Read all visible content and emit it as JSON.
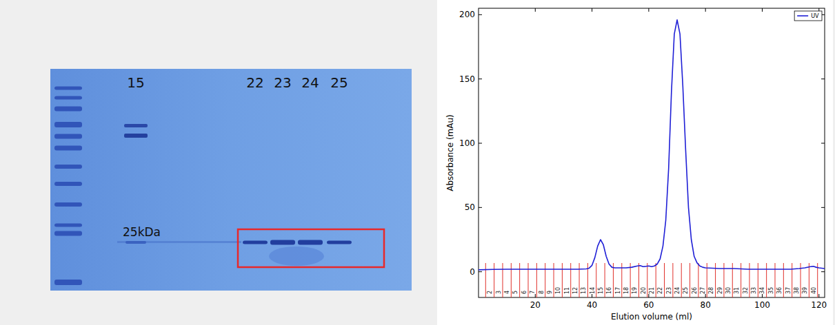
{
  "gel": {
    "lane_labels": [
      "15",
      "22",
      "23",
      "24",
      "25"
    ],
    "marker_label": "25kDa"
  },
  "chart_data": {
    "type": "line",
    "xlabel": "Elution volume (ml)",
    "ylabel": "Absorbance (mAu)",
    "x": [
      0,
      5,
      10,
      15,
      20,
      25,
      30,
      35,
      38,
      39,
      40,
      41,
      42,
      43,
      44,
      45,
      46,
      47,
      48,
      50,
      52,
      54,
      56,
      57,
      58,
      59,
      60,
      61,
      62,
      63,
      64,
      65,
      66,
      67,
      68,
      69,
      70,
      71,
      72,
      73,
      74,
      75,
      76,
      77,
      78,
      79,
      80,
      85,
      90,
      95,
      100,
      105,
      110,
      113,
      115,
      117,
      118,
      119,
      120,
      122
    ],
    "series": [
      {
        "name": "UV",
        "color": "#1f1fd6",
        "values": [
          1.5,
          1.8,
          2,
          2,
          2,
          2,
          2,
          2,
          2.2,
          2.8,
          5,
          11,
          20,
          25,
          21,
          12,
          6,
          3.5,
          3,
          3,
          3,
          3.5,
          4.5,
          4.8,
          4,
          4.2,
          4.5,
          4,
          4.5,
          6,
          10,
          20,
          40,
          80,
          140,
          185,
          196,
          185,
          145,
          95,
          50,
          25,
          12,
          7,
          4.5,
          3.5,
          3,
          2.5,
          2.5,
          2,
          2,
          2,
          2,
          2.5,
          3,
          4,
          4.2,
          3.5,
          3,
          2.5
        ]
      }
    ],
    "xlim": [
      0,
      122
    ],
    "ylim": [
      -20,
      205
    ],
    "xticks": [
      20,
      40,
      60,
      80,
      100,
      120
    ],
    "yticks": [
      0,
      50,
      100,
      150,
      200
    ],
    "grid": false,
    "legend": "upper right",
    "fractions": {
      "color": "#e0302a",
      "labels": [
        2,
        3,
        4,
        5,
        6,
        7,
        8,
        9,
        10,
        11,
        12,
        13,
        14,
        15,
        16,
        17,
        18,
        19,
        20,
        21,
        22,
        23,
        24,
        25,
        26,
        27,
        28,
        29,
        30,
        31,
        32,
        33,
        34,
        35,
        36,
        37,
        38,
        39,
        40
      ],
      "edges": [
        2.5,
        5.5,
        8.5,
        11.5,
        14.5,
        17.5,
        20.5,
        23.5,
        26.5,
        29.5,
        32.5,
        35.5,
        38.5,
        41.5,
        44.5,
        47.5,
        50.5,
        53.5,
        56.5,
        59.5,
        62.5,
        65.5,
        68.5,
        71.5,
        74.5,
        77.5,
        80.5,
        83.5,
        86.5,
        89.5,
        92.5,
        95.5,
        98.5,
        101.5,
        104.5,
        107.5,
        110.5,
        113.5,
        116.5,
        119.5
      ]
    }
  }
}
